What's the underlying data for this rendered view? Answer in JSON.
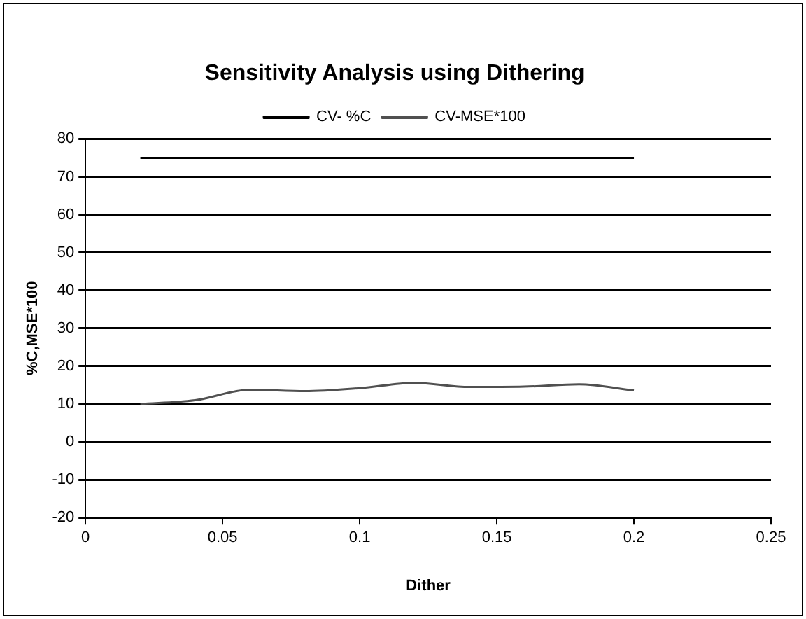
{
  "chart_data": {
    "type": "line",
    "title": "Sensitivity Analysis using Dithering",
    "xlabel": "Dither",
    "ylabel": "%C,MSE*100",
    "x": [
      0.02,
      0.04,
      0.06,
      0.08,
      0.1,
      0.12,
      0.14,
      0.16,
      0.18,
      0.2
    ],
    "series": [
      {
        "name": "CV- %C",
        "color": "#000000",
        "values": [
          75,
          75,
          75,
          75,
          75,
          75,
          75,
          75,
          75,
          75
        ]
      },
      {
        "name": "CV-MSE*100",
        "color": "#505050",
        "values": [
          10,
          11,
          13.8,
          13.4,
          14.2,
          15.6,
          14.5,
          14.6,
          15.2,
          13.6
        ]
      }
    ],
    "xlim": [
      0,
      0.25
    ],
    "xticks": [
      0,
      0.05,
      0.1,
      0.15,
      0.2,
      0.25
    ],
    "ylim": [
      -20,
      80
    ],
    "yticks": [
      -20,
      -10,
      0,
      10,
      20,
      30,
      40,
      50,
      60,
      70,
      80
    ],
    "grid": "y",
    "legend": "top",
    "marker": "none",
    "line_style": "solid"
  }
}
